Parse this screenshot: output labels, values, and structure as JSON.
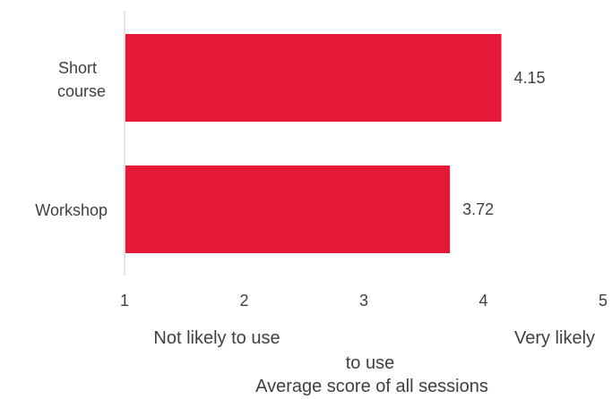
{
  "chart_data": {
    "type": "bar",
    "orientation": "horizontal",
    "categories": [
      "Short course",
      "Workshop"
    ],
    "values": [
      4.15,
      3.72
    ],
    "data_labels": [
      "4.15",
      "3.72"
    ],
    "xlim": [
      1,
      5
    ],
    "xticks": [
      "1",
      "2",
      "3",
      "4",
      "5"
    ],
    "xlabel": "Average score of all sessions",
    "scale_anchor_low": "Not likely to use",
    "scale_anchor_high": "Very likely to use",
    "grid": false,
    "legend": "none",
    "colors": {
      "bar": "#E31937",
      "axis": "#D9D9D9",
      "text": "#404040"
    }
  }
}
